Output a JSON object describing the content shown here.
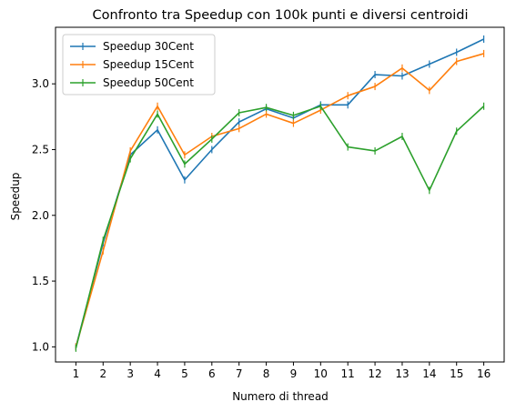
{
  "chart_data": {
    "type": "line",
    "title": "Confronto tra Speedup con 100k punti e diversi centroidi",
    "xlabel": "Numero di thread",
    "ylabel": "Speedup",
    "x": [
      1,
      2,
      3,
      4,
      5,
      6,
      7,
      8,
      9,
      10,
      11,
      12,
      13,
      14,
      15,
      16
    ],
    "xlim": [
      0.25,
      16.75
    ],
    "ylim": [
      0.885,
      3.43
    ],
    "xticks": [
      "1",
      "2",
      "3",
      "4",
      "5",
      "6",
      "7",
      "8",
      "9",
      "10",
      "11",
      "12",
      "13",
      "14",
      "15",
      "16"
    ],
    "yticks": [
      "1.0",
      "1.5",
      "2.0",
      "2.5",
      "3.0"
    ],
    "grid": false,
    "legend_position": "upper-left",
    "series": [
      {
        "name": "Speedup 30Cent",
        "color": "#1f77b4",
        "values": [
          1.0,
          1.79,
          2.46,
          2.65,
          2.27,
          2.5,
          2.71,
          2.81,
          2.74,
          2.84,
          2.84,
          3.07,
          3.06,
          3.15,
          3.24,
          3.34
        ]
      },
      {
        "name": "Speedup 15Cent",
        "color": "#ff7f0e",
        "values": [
          1.0,
          1.73,
          2.49,
          2.83,
          2.46,
          2.6,
          2.66,
          2.77,
          2.7,
          2.8,
          2.91,
          2.98,
          3.12,
          2.95,
          3.17,
          3.23
        ]
      },
      {
        "name": "Speedup 50Cent",
        "color": "#2ca02c",
        "values": [
          0.99,
          1.81,
          2.43,
          2.77,
          2.39,
          2.58,
          2.78,
          2.82,
          2.76,
          2.83,
          2.52,
          2.49,
          2.6,
          2.19,
          2.64,
          2.83
        ]
      }
    ]
  }
}
